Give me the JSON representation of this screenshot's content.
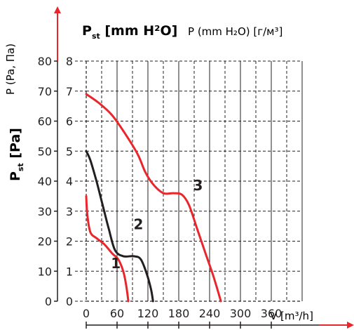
{
  "chart_data": {
    "type": "line",
    "title_left": {
      "main": "P",
      "sub": "st",
      "rest": " [mm H²O]"
    },
    "title_right": "P (mm H₂O) [г/м³]",
    "y_label_pa": {
      "main": "P",
      "sub": "st",
      "rest": " [Pa]"
    },
    "y_label_alt": "P (Pa, Па)",
    "x_label": "V [m³/h]",
    "x_ticks": [
      "0",
      "60",
      "120",
      "180",
      "240",
      "300",
      "360"
    ],
    "x_tick_values": [
      0,
      60,
      120,
      180,
      240,
      300,
      360
    ],
    "y_ticks_pa": [
      "0",
      "10",
      "20",
      "30",
      "40",
      "50",
      "60",
      "70",
      "80"
    ],
    "y_ticks_mm": [
      "0",
      "1",
      "2",
      "3",
      "4",
      "5",
      "6",
      "7",
      "8"
    ],
    "xlim": [
      0,
      420
    ],
    "ylim": [
      0,
      80
    ],
    "grid": true,
    "colors": {
      "red": "#e8262c",
      "black": "#231f20"
    },
    "series": [
      {
        "label": "1",
        "color": "#e8262c",
        "label_at": [
          48,
          11
        ],
        "points": [
          [
            0,
            35
          ],
          [
            2,
            29
          ],
          [
            8,
            23
          ],
          [
            20,
            21
          ],
          [
            35,
            19
          ],
          [
            50,
            16
          ],
          [
            62,
            14
          ],
          [
            72,
            10
          ],
          [
            78,
            5
          ],
          [
            82,
            0
          ]
        ]
      },
      {
        "label": "2",
        "color": "#231f20",
        "label_at": [
          92,
          24
        ],
        "points": [
          [
            0,
            50
          ],
          [
            8,
            47
          ],
          [
            20,
            40
          ],
          [
            32,
            32
          ],
          [
            44,
            24
          ],
          [
            56,
            17
          ],
          [
            72,
            15
          ],
          [
            92,
            15
          ],
          [
            106,
            14
          ],
          [
            118,
            9
          ],
          [
            126,
            4
          ],
          [
            130,
            0
          ]
        ]
      },
      {
        "label": "3",
        "color": "#e8262c",
        "label_at": [
          208,
          37
        ],
        "points": [
          [
            0,
            69
          ],
          [
            25,
            66
          ],
          [
            50,
            62
          ],
          [
            75,
            56
          ],
          [
            100,
            49
          ],
          [
            115,
            43
          ],
          [
            130,
            39
          ],
          [
            150,
            36
          ],
          [
            170,
            36
          ],
          [
            186,
            35.5
          ],
          [
            200,
            32
          ],
          [
            216,
            24
          ],
          [
            232,
            16
          ],
          [
            248,
            8
          ],
          [
            262,
            0
          ]
        ]
      }
    ]
  }
}
